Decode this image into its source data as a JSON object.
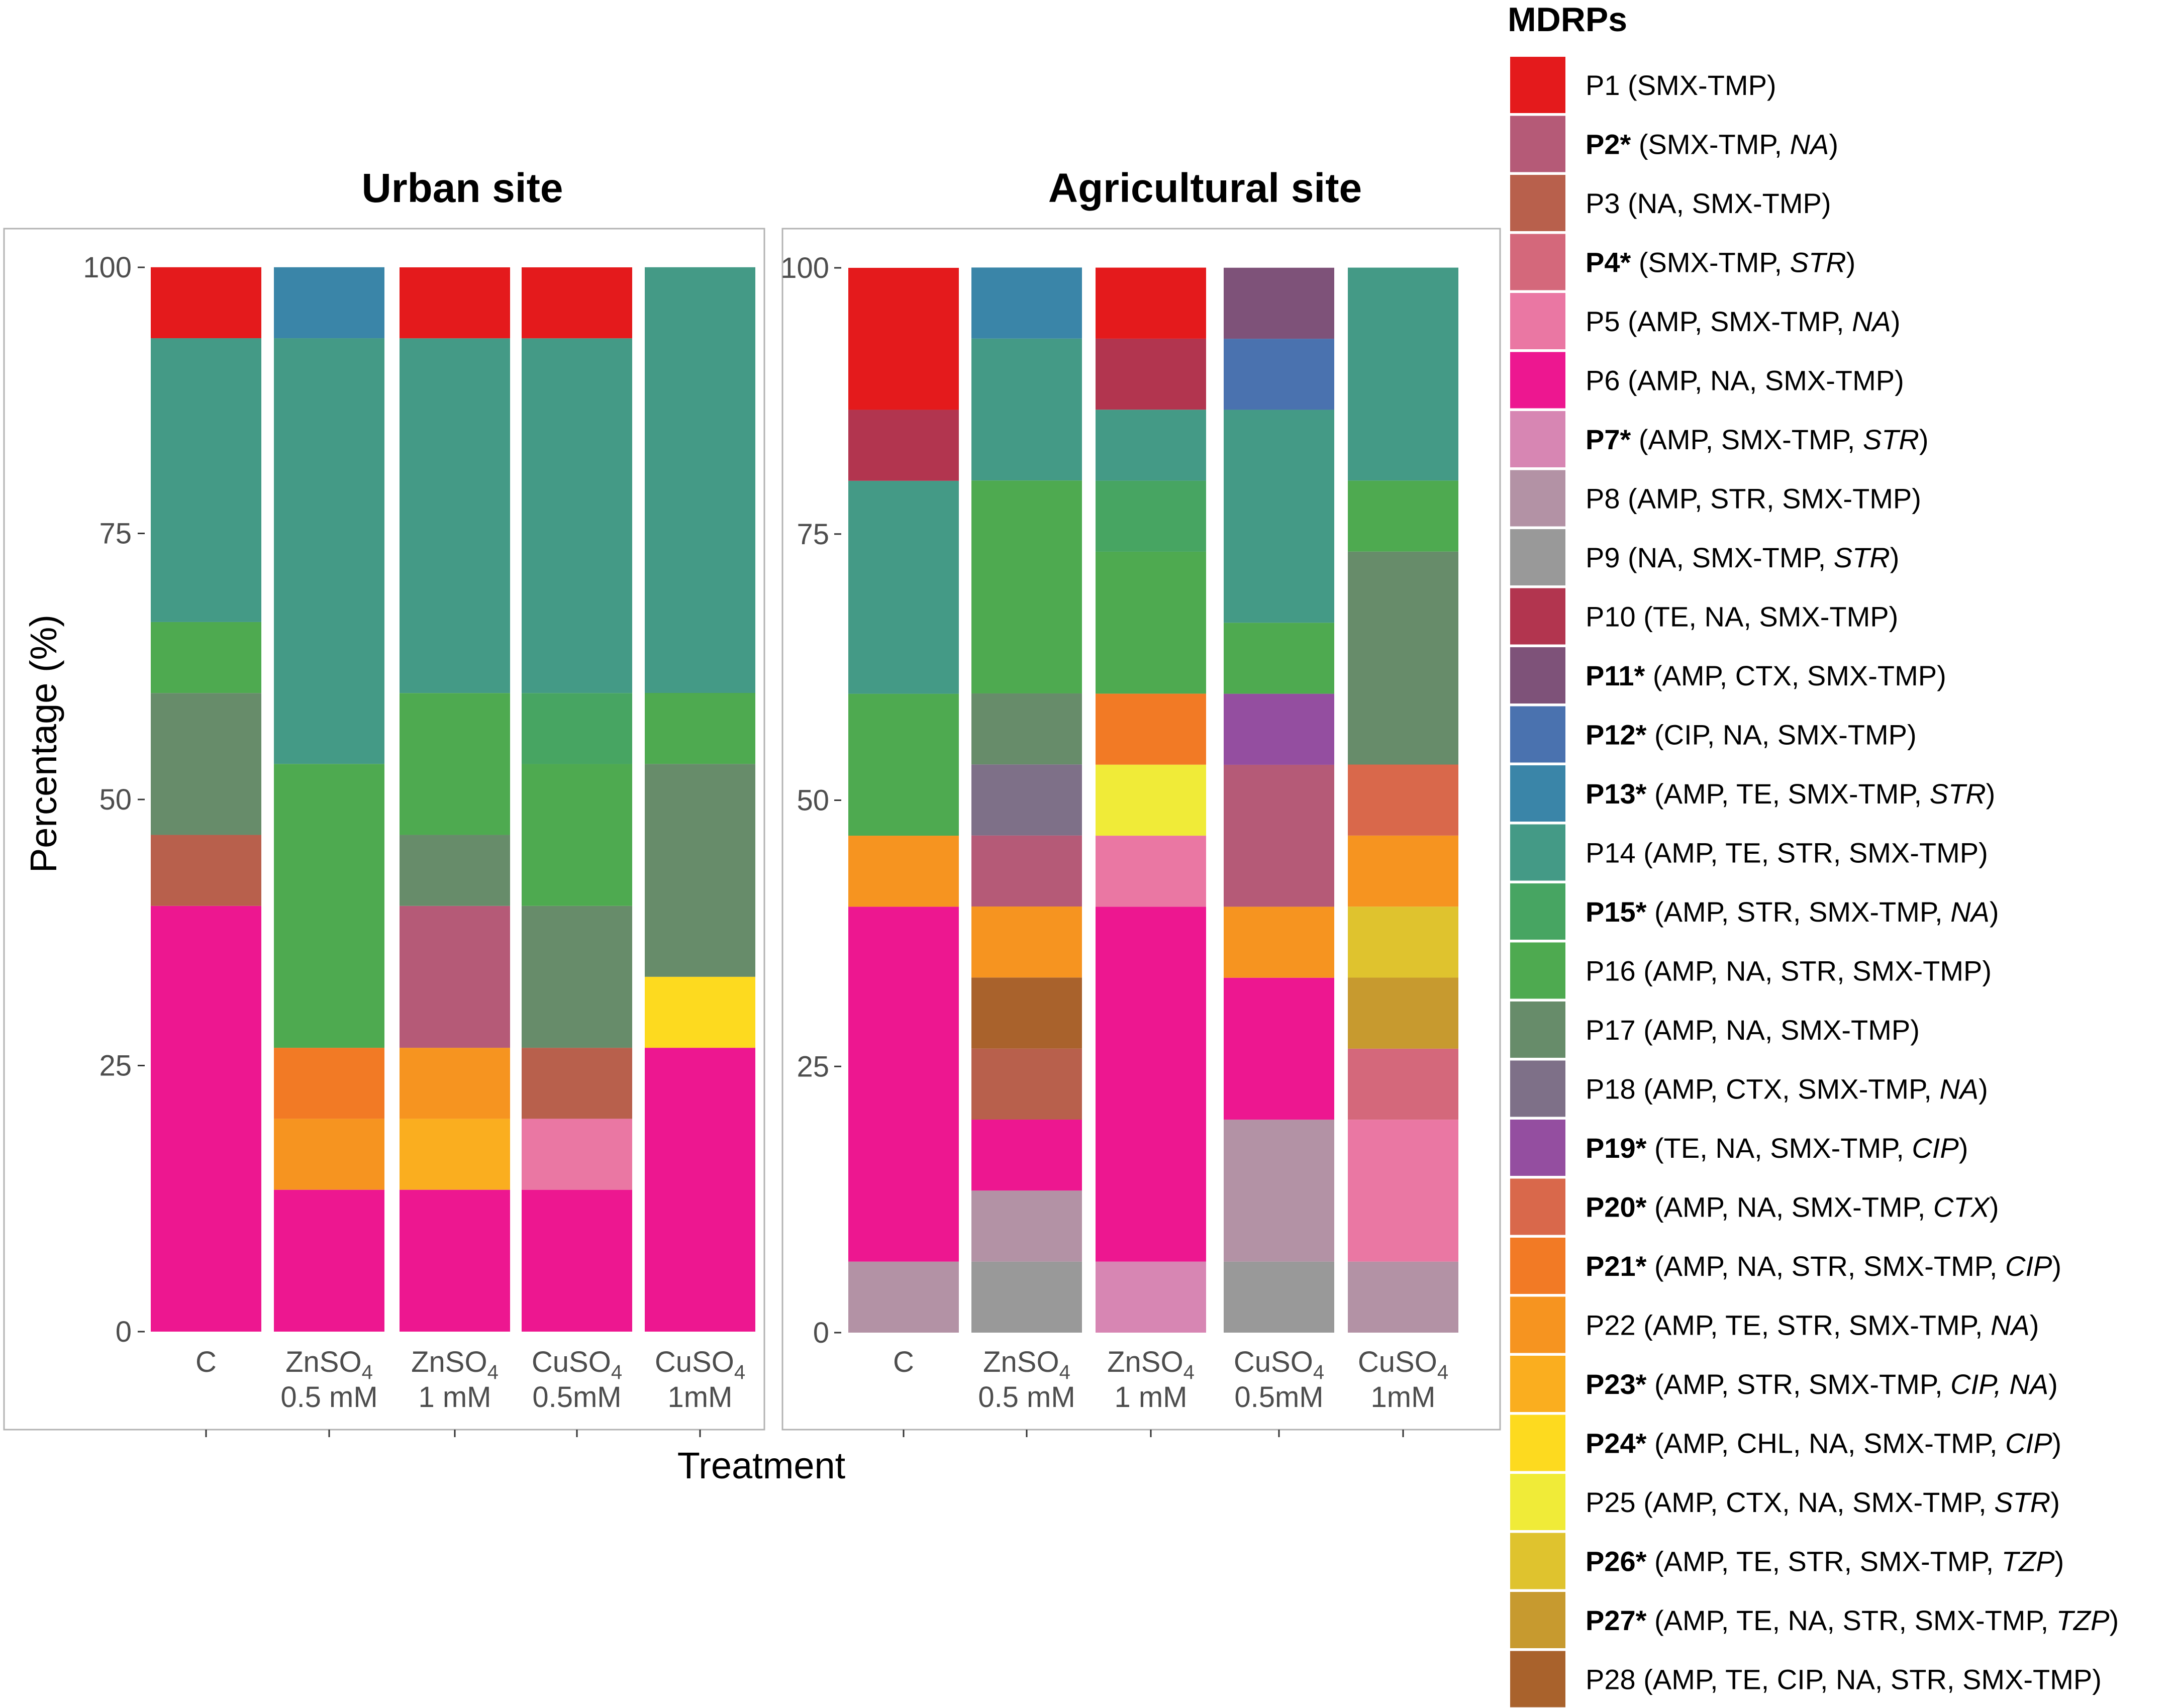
{
  "chart_data": {
    "type": "bar",
    "stacked": true,
    "ylabel": "Percentage (%)",
    "xlabel": "Treatment",
    "ylim": [
      0,
      100
    ],
    "yticks": [
      "0",
      "25",
      "50",
      "75",
      "100"
    ],
    "categories": [
      {
        "line1": "C",
        "line2": ""
      },
      {
        "line1": "ZnSO",
        "sub": "4",
        "line2": "0.5 mM"
      },
      {
        "line1": "ZnSO",
        "sub": "4",
        "line2": "1 mM"
      },
      {
        "line1": "CuSO",
        "sub": "4",
        "line2": "0.5mM"
      },
      {
        "line1": "CuSO",
        "sub": "4",
        "line2": "1mM"
      }
    ],
    "panels": [
      {
        "title": "Urban site",
        "bars": [
          [
            {
              "p": "P6",
              "v": 40
            },
            {
              "p": "P3",
              "v": 6.67
            },
            {
              "p": "P17",
              "v": 13.33
            },
            {
              "p": "P16",
              "v": 6.67
            },
            {
              "p": "P14",
              "v": 26.67
            },
            {
              "p": "P1",
              "v": 6.67
            }
          ],
          [
            {
              "p": "P6",
              "v": 13.33
            },
            {
              "p": "P22",
              "v": 6.67
            },
            {
              "p": "P21",
              "v": 6.67
            },
            {
              "p": "P16",
              "v": 26.67
            },
            {
              "p": "P14",
              "v": 40
            },
            {
              "p": "P13",
              "v": 6.67
            }
          ],
          [
            {
              "p": "P6",
              "v": 13.33
            },
            {
              "p": "P23",
              "v": 6.67
            },
            {
              "p": "P22",
              "v": 6.67
            },
            {
              "p": "P2",
              "v": 13.33
            },
            {
              "p": "P17",
              "v": 6.67
            },
            {
              "p": "P16",
              "v": 13.33
            },
            {
              "p": "P14",
              "v": 33.33
            },
            {
              "p": "P1",
              "v": 6.67
            }
          ],
          [
            {
              "p": "P6",
              "v": 13.33
            },
            {
              "p": "P5",
              "v": 6.67
            },
            {
              "p": "P3",
              "v": 6.67
            },
            {
              "p": "P17",
              "v": 13.33
            },
            {
              "p": "P16",
              "v": 13.33
            },
            {
              "p": "P15",
              "v": 6.67
            },
            {
              "p": "P14",
              "v": 33.33
            },
            {
              "p": "P1",
              "v": 6.67
            }
          ],
          [
            {
              "p": "P6",
              "v": 26.67
            },
            {
              "p": "P24",
              "v": 6.67
            },
            {
              "p": "P17",
              "v": 20
            },
            {
              "p": "P16",
              "v": 6.67
            },
            {
              "p": "P14",
              "v": 40
            }
          ]
        ]
      },
      {
        "title": "Agricultural site",
        "bars": [
          [
            {
              "p": "P8",
              "v": 6.67
            },
            {
              "p": "P6",
              "v": 33.33
            },
            {
              "p": "P22",
              "v": 6.67
            },
            {
              "p": "P16",
              "v": 13.33
            },
            {
              "p": "P14",
              "v": 20
            },
            {
              "p": "P10",
              "v": 6.67
            },
            {
              "p": "P1",
              "v": 13.33
            }
          ],
          [
            {
              "p": "P9",
              "v": 6.67
            },
            {
              "p": "P8",
              "v": 6.67
            },
            {
              "p": "P6",
              "v": 6.67
            },
            {
              "p": "P3",
              "v": 6.67
            },
            {
              "p": "P28",
              "v": 6.67
            },
            {
              "p": "P22",
              "v": 6.67
            },
            {
              "p": "P2",
              "v": 6.67
            },
            {
              "p": "P18",
              "v": 6.67
            },
            {
              "p": "P17",
              "v": 6.67
            },
            {
              "p": "P16",
              "v": 20
            },
            {
              "p": "P14",
              "v": 13.33
            },
            {
              "p": "P13",
              "v": 6.67
            }
          ],
          [
            {
              "p": "P7",
              "v": 6.67
            },
            {
              "p": "P6",
              "v": 33.33
            },
            {
              "p": "P5",
              "v": 6.67
            },
            {
              "p": "P25",
              "v": 6.67
            },
            {
              "p": "P21",
              "v": 6.67
            },
            {
              "p": "P16",
              "v": 13.33
            },
            {
              "p": "P15",
              "v": 6.67
            },
            {
              "p": "P14",
              "v": 6.67
            },
            {
              "p": "P10",
              "v": 6.67
            },
            {
              "p": "P1",
              "v": 6.67
            }
          ],
          [
            {
              "p": "P9",
              "v": 6.67
            },
            {
              "p": "P8",
              "v": 13.33
            },
            {
              "p": "P6",
              "v": 13.33
            },
            {
              "p": "P22",
              "v": 6.67
            },
            {
              "p": "P2",
              "v": 13.33
            },
            {
              "p": "P19",
              "v": 6.67
            },
            {
              "p": "P16",
              "v": 6.67
            },
            {
              "p": "P14",
              "v": 20
            },
            {
              "p": "P12",
              "v": 6.67
            },
            {
              "p": "P11",
              "v": 6.67
            }
          ],
          [
            {
              "p": "P8",
              "v": 6.67
            },
            {
              "p": "P5",
              "v": 13.33
            },
            {
              "p": "P4",
              "v": 6.67
            },
            {
              "p": "P27",
              "v": 6.67
            },
            {
              "p": "P26",
              "v": 6.67
            },
            {
              "p": "P22",
              "v": 6.67
            },
            {
              "p": "P20",
              "v": 6.67
            },
            {
              "p": "P17",
              "v": 20
            },
            {
              "p": "P16",
              "v": 6.67
            },
            {
              "p": "P14",
              "v": 20
            }
          ]
        ]
      }
    ],
    "legend": {
      "title": "MDRPs",
      "position": "right",
      "entries": [
        {
          "code": "P1",
          "bold": false,
          "color": "#E41A1C",
          "plain": "SMX-TMP",
          "italic": ""
        },
        {
          "code": "P2*",
          "bold": true,
          "color": "#B55A77",
          "plain": "SMX-TMP, ",
          "italic": "NA"
        },
        {
          "code": "P3",
          "bold": false,
          "color": "#B8604C",
          "plain": "NA, SMX-TMP",
          "italic": ""
        },
        {
          "code": "P4*",
          "bold": true,
          "color": "#D4687B",
          "plain": "SMX-TMP, ",
          "italic": "STR"
        },
        {
          "code": "P5",
          "bold": false,
          "color": "#EA77A3",
          "plain": "AMP, SMX-TMP, ",
          "italic": "NA"
        },
        {
          "code": "P6",
          "bold": false,
          "color": "#ED1790",
          "plain": "AMP, NA, SMX-TMP",
          "italic": ""
        },
        {
          "code": "P7*",
          "bold": true,
          "color": "#D786B3",
          "plain": "AMP, SMX-TMP, ",
          "italic": "STR"
        },
        {
          "code": "P8",
          "bold": false,
          "color": "#B392A5",
          "plain": "AMP, STR, SMX-TMP",
          "italic": ""
        },
        {
          "code": "P9",
          "bold": false,
          "color": "#999999",
          "plain": "NA, SMX-TMP, ",
          "italic": "STR"
        },
        {
          "code": "P10",
          "bold": false,
          "color": "#B2354F",
          "plain": "TE, NA, SMX-TMP",
          "italic": ""
        },
        {
          "code": "P11*",
          "bold": true,
          "color": "#7E5279",
          "plain": "AMP, CTX, SMX-TMP",
          "italic": ""
        },
        {
          "code": "P12*",
          "bold": true,
          "color": "#4A72AF",
          "plain": "CIP, NA, SMX-TMP",
          "italic": ""
        },
        {
          "code": "P13*",
          "bold": true,
          "color": "#3A85A8",
          "plain": "AMP, TE, SMX-TMP, ",
          "italic": "STR"
        },
        {
          "code": "P14",
          "bold": false,
          "color": "#449A86",
          "plain": "AMP, TE, STR, SMX-TMP",
          "italic": ""
        },
        {
          "code": "P15*",
          "bold": true,
          "color": "#47A562",
          "plain": "AMP, STR, SMX-TMP, ",
          "italic": "NA"
        },
        {
          "code": "P16",
          "bold": false,
          "color": "#4EAA50",
          "plain": "AMP, NA, STR, SMX-TMP",
          "italic": ""
        },
        {
          "code": "P17",
          "bold": false,
          "color": "#678C6A",
          "plain": "AMP, NA, SMX-TMP",
          "italic": ""
        },
        {
          "code": "P18",
          "bold": false,
          "color": "#7E7088",
          "plain": "AMP, CTX, SMX-TMP, ",
          "italic": "NA"
        },
        {
          "code": "P19*",
          "bold": true,
          "color": "#944EA0",
          "plain": "TE, NA, SMX-TMP, ",
          "italic": "CIP"
        },
        {
          "code": "P20*",
          "bold": true,
          "color": "#D9684B",
          "plain": "AMP, NA, SMX-TMP, ",
          "italic": "CTX"
        },
        {
          "code": "P21*",
          "bold": true,
          "color": "#F27A25",
          "plain": "AMP, NA, STR, SMX-TMP, ",
          "italic": "CIP"
        },
        {
          "code": "P22",
          "bold": false,
          "color": "#F69420",
          "plain": "AMP, TE, STR, SMX-TMP, ",
          "italic": "NA"
        },
        {
          "code": "P23*",
          "bold": true,
          "color": "#FAAE1F",
          "plain": "AMP, STR, SMX-TMP, ",
          "italic": "CIP, NA"
        },
        {
          "code": "P24*",
          "bold": true,
          "color": "#FDDA1F",
          "plain": "AMP, CHL, NA, SMX-TMP, ",
          "italic": "CIP"
        },
        {
          "code": "P25",
          "bold": false,
          "color": "#F0EB38",
          "plain": "AMP, CTX, NA, SMX-TMP, ",
          "italic": "STR"
        },
        {
          "code": "P26*",
          "bold": true,
          "color": "#DFC32E",
          "plain": "AMP, TE, STR, SMX-TMP, ",
          "italic": "TZP"
        },
        {
          "code": "P27*",
          "bold": true,
          "color": "#C79A2F",
          "plain": "AMP, TE, NA, STR, SMX-TMP, ",
          "italic": "TZP"
        },
        {
          "code": "P28",
          "bold": false,
          "color": "#A9622C",
          "plain": "AMP, TE, CIP, NA, STR, SMX-TMP",
          "italic": ""
        }
      ]
    }
  }
}
